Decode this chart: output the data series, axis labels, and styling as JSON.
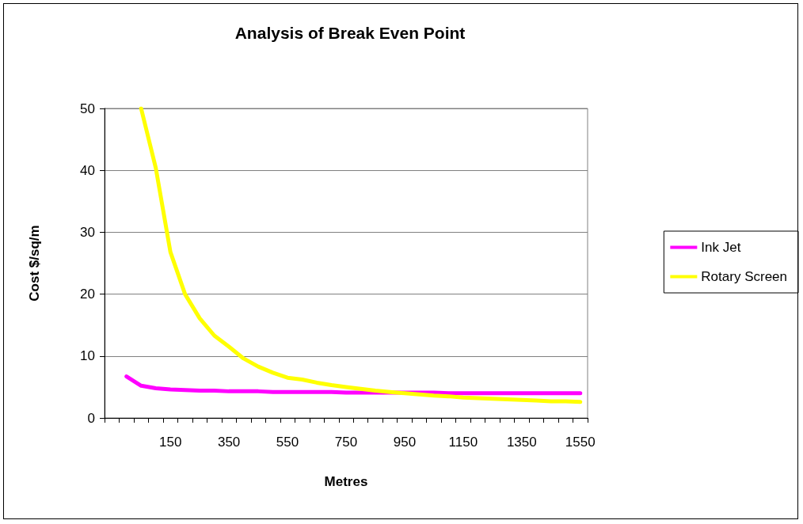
{
  "chart_data": {
    "type": "line",
    "title": "Analysis of Break Even Point",
    "xlabel": "Metres",
    "ylabel": "Cost $/sq/m",
    "categories": [
      null,
      null,
      null,
      null,
      "150",
      null,
      null,
      null,
      "350",
      null,
      null,
      null,
      "550",
      null,
      null,
      null,
      "750",
      null,
      null,
      null,
      "950",
      null,
      null,
      null,
      "1150",
      null,
      null,
      null,
      "1350",
      null,
      null,
      null,
      "1550"
    ],
    "series": [
      {
        "name": "Ink Jet",
        "color": "#ff00ff",
        "values": [
          null,
          6.7,
          5.2,
          4.8,
          4.6,
          4.5,
          4.4,
          4.4,
          4.3,
          4.3,
          4.3,
          4.2,
          4.2,
          4.2,
          4.2,
          4.2,
          4.1,
          4.1,
          4.1,
          4.1,
          4.1,
          4.1,
          4.1,
          4.0,
          4.0,
          4.0,
          4.0,
          4.0,
          4.0,
          4.0,
          4.0,
          4.0,
          4.0
        ]
      },
      {
        "name": "Rotary Screen",
        "color": "#ffff00",
        "values": [
          null,
          null,
          50,
          40.4,
          26.8,
          20.0,
          16.1,
          13.3,
          11.5,
          9.6,
          8.3,
          7.3,
          6.5,
          6.2,
          5.7,
          5.3,
          5.0,
          4.7,
          4.4,
          4.2,
          4.0,
          3.8,
          3.6,
          3.5,
          3.3,
          3.2,
          3.1,
          3.0,
          2.9,
          2.8,
          2.7,
          2.7,
          2.6
        ]
      }
    ],
    "ylim": [
      0,
      50
    ],
    "yticks": [
      0,
      10,
      20,
      30,
      40,
      50
    ],
    "grid": "y",
    "legend": "right",
    "marker": "none",
    "line_style": "solid"
  }
}
